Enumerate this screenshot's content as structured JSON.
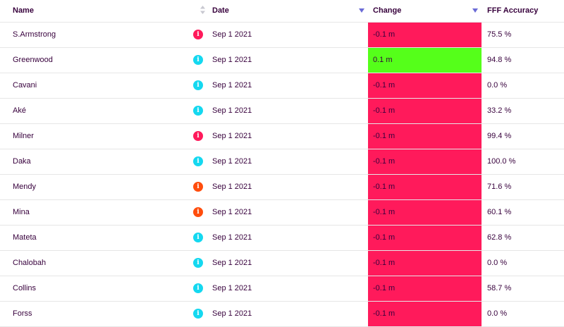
{
  "columns": {
    "name": "Name",
    "date": "Date",
    "change": "Change",
    "accuracy": "FFF Accuracy"
  },
  "colors": {
    "negative_change": "#ff1a5b",
    "positive_change": "#55ff1a",
    "info_red": "#ff1a5b",
    "info_cyan": "#14d8f0",
    "info_orange": "#ff4d0d",
    "sort_arrow": "#6b6bd6"
  },
  "rows": [
    {
      "name": "S.Armstrong",
      "info": "i",
      "info_color": "#ff1a5b",
      "date": "Sep 1 2021",
      "change": "-0.1 m",
      "change_color": "#ff1a5b",
      "accuracy": "75.5 %"
    },
    {
      "name": "Greenwood",
      "info": "i",
      "info_color": "#14d8f0",
      "date": "Sep 1 2021",
      "change": "0.1 m",
      "change_color": "#55ff1a",
      "accuracy": "94.8 %"
    },
    {
      "name": "Cavani",
      "info": "i",
      "info_color": "#14d8f0",
      "date": "Sep 1 2021",
      "change": "-0.1 m",
      "change_color": "#ff1a5b",
      "accuracy": "0.0 %"
    },
    {
      "name": "Aké",
      "info": "i",
      "info_color": "#14d8f0",
      "date": "Sep 1 2021",
      "change": "-0.1 m",
      "change_color": "#ff1a5b",
      "accuracy": "33.2 %"
    },
    {
      "name": "Milner",
      "info": "i",
      "info_color": "#ff1a5b",
      "date": "Sep 1 2021",
      "change": "-0.1 m",
      "change_color": "#ff1a5b",
      "accuracy": "99.4 %"
    },
    {
      "name": "Daka",
      "info": "i",
      "info_color": "#14d8f0",
      "date": "Sep 1 2021",
      "change": "-0.1 m",
      "change_color": "#ff1a5b",
      "accuracy": "100.0 %"
    },
    {
      "name": "Mendy",
      "info": "i",
      "info_color": "#ff4d0d",
      "date": "Sep 1 2021",
      "change": "-0.1 m",
      "change_color": "#ff1a5b",
      "accuracy": "71.6 %"
    },
    {
      "name": "Mina",
      "info": "i",
      "info_color": "#ff4d0d",
      "date": "Sep 1 2021",
      "change": "-0.1 m",
      "change_color": "#ff1a5b",
      "accuracy": "60.1 %"
    },
    {
      "name": "Mateta",
      "info": "i",
      "info_color": "#14d8f0",
      "date": "Sep 1 2021",
      "change": "-0.1 m",
      "change_color": "#ff1a5b",
      "accuracy": "62.8 %"
    },
    {
      "name": "Chalobah",
      "info": "i",
      "info_color": "#14d8f0",
      "date": "Sep 1 2021",
      "change": "-0.1 m",
      "change_color": "#ff1a5b",
      "accuracy": "0.0 %"
    },
    {
      "name": "Collins",
      "info": "i",
      "info_color": "#14d8f0",
      "date": "Sep 1 2021",
      "change": "-0.1 m",
      "change_color": "#ff1a5b",
      "accuracy": "58.7 %"
    },
    {
      "name": "Forss",
      "info": "i",
      "info_color": "#14d8f0",
      "date": "Sep 1 2021",
      "change": "-0.1 m",
      "change_color": "#ff1a5b",
      "accuracy": "0.0 %"
    }
  ]
}
